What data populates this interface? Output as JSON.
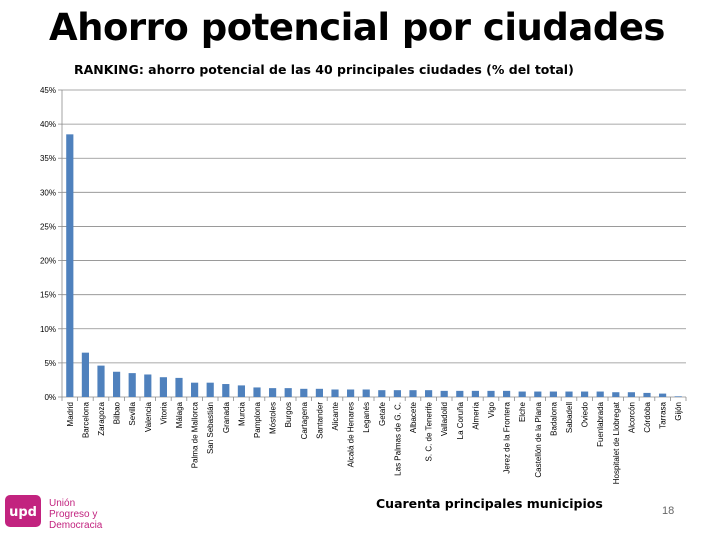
{
  "slide": {
    "title": "Ahorro potencial por ciudades",
    "page_number": "18",
    "logo": {
      "mark": "upd",
      "lines": [
        "Unión",
        "Progreso y",
        "Democracia"
      ],
      "color": "#c2237f"
    }
  },
  "chart_data": {
    "type": "bar",
    "title": "RANKING:  ahorro potencial de las 40 principales ciudades (% del total)",
    "xlabel": "Cuarenta principales municipios",
    "ylabel": "",
    "ylim": [
      0,
      45
    ],
    "yticks": [
      "0%",
      "5%",
      "10%",
      "15%",
      "20%",
      "25%",
      "30%",
      "35%",
      "40%",
      "45%"
    ],
    "grid": true,
    "bar_color": "#4f81bd",
    "categories": [
      "Madrid",
      "Barcelona",
      "Zaragoza",
      "Bilbao",
      "Sevilla",
      "Valencia",
      "Vitoria",
      "Málaga",
      "Palma de Mallorca",
      "San Sebastián",
      "Granada",
      "Murcia",
      "Pamplona",
      "Móstoles",
      "Burgos",
      "Cartagena",
      "Santander",
      "Alicante",
      "Alcalá de Henares",
      "Leganés",
      "Getafe",
      "Las Palmas de G. C.",
      "Albacete",
      "S. C. de Tenerife",
      "Valladolid",
      "La Coruña",
      "Almería",
      "Vigo",
      "Jerez de la Frontera",
      "Elche",
      "Castellón de la Plana",
      "Badalona",
      "Sabadell",
      "Oviedo",
      "Fuenlabrada",
      "Hospitalet de Llobregat",
      "Alcorcón",
      "Córdoba",
      "Tarrasa",
      "Gijón"
    ],
    "values": [
      38.5,
      6.5,
      4.6,
      3.7,
      3.5,
      3.3,
      2.9,
      2.8,
      2.1,
      2.1,
      1.9,
      1.7,
      1.4,
      1.3,
      1.3,
      1.2,
      1.2,
      1.1,
      1.1,
      1.1,
      1.0,
      1.0,
      1.0,
      1.0,
      0.9,
      0.9,
      0.9,
      0.9,
      0.9,
      0.8,
      0.8,
      0.8,
      0.8,
      0.8,
      0.8,
      0.7,
      0.7,
      0.6,
      0.5,
      0.1
    ]
  }
}
